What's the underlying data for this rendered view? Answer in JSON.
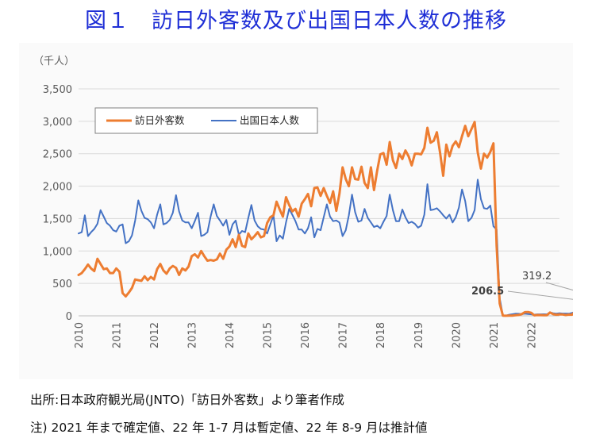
{
  "title": "図１　訪日外客数及び出国日本人数の推移",
  "notes": {
    "source": "出所:日本政府観光局(JNTO)「訪日外客数」より筆者作成",
    "note": "注) 2021 年まで確定値、22 年 1-7 月は暫定値、22 年 8-9 月は推計値"
  },
  "colors": {
    "inbound": "#ed7d31",
    "outbound": "#4472c4",
    "grid": "#d9d9d9",
    "axis": "#bfbfbf"
  },
  "chart_data": {
    "type": "line",
    "unit_label": "（千人）",
    "x_start": "2010-01",
    "x_ticks": [
      "2010",
      "2011",
      "2012",
      "2013",
      "2014",
      "2015",
      "2016",
      "2017",
      "2018",
      "2019",
      "2020",
      "2021",
      "2022"
    ],
    "ylim": [
      0,
      3500
    ],
    "y_ticks": [
      0,
      500,
      1000,
      1500,
      2000,
      2500,
      3000,
      3500
    ],
    "y_tick_labels": [
      "0",
      "500",
      "1,000",
      "1,500",
      "2,000",
      "2,500",
      "3,000",
      "3,500"
    ],
    "grid": true,
    "legend_position": "top-left",
    "series": [
      {
        "name": "訪日外客数",
        "values": [
          630,
          660,
          720,
          790,
          730,
          690,
          880,
          800,
          720,
          730,
          660,
          660,
          730,
          680,
          350,
          300,
          360,
          430,
          560,
          550,
          540,
          610,
          550,
          600,
          560,
          720,
          800,
          700,
          650,
          730,
          770,
          740,
          630,
          730,
          700,
          760,
          920,
          950,
          900,
          1000,
          920,
          850,
          860,
          850,
          870,
          960,
          880,
          1020,
          1070,
          1180,
          1060,
          1250,
          1080,
          1060,
          1270,
          1180,
          1230,
          1290,
          1210,
          1230,
          1430,
          1520,
          1550,
          1760,
          1640,
          1530,
          1830,
          1710,
          1610,
          1650,
          1530,
          1730,
          1800,
          1880,
          1690,
          1970,
          1980,
          1850,
          1970,
          1850,
          1740,
          1920,
          1620,
          1880,
          2290,
          2110,
          2000,
          2290,
          2110,
          2100,
          2300,
          2050,
          1970,
          2290,
          1940,
          2240,
          2490,
          2510,
          2330,
          2680,
          2400,
          2280,
          2500,
          2420,
          2550,
          2460,
          2320,
          2500,
          2500,
          2490,
          2590,
          2900,
          2670,
          2700,
          2830,
          2520,
          2160,
          2640,
          2460,
          2620,
          2690,
          2600,
          2770,
          2930,
          2770,
          2880,
          2990,
          2520,
          2270,
          2500,
          2440,
          2530,
          2660,
          1080,
          190,
          2.9,
          1.7,
          2.6,
          3.8,
          8.7,
          13.7,
          27.4,
          56.7,
          58.7,
          46.5,
          7.4,
          12.3,
          10.9,
          10.0,
          9.3,
          51.1,
          25.9,
          17.7,
          22.1,
          20.7,
          12.1,
          17.8,
          16.7,
          66.1,
          139.5,
          147.0,
          120.4,
          144.5,
          176.0,
          206.5
        ]
      },
      {
        "name": "出国日本人数",
        "values": [
          1270,
          1290,
          1550,
          1230,
          1290,
          1340,
          1420,
          1630,
          1530,
          1430,
          1390,
          1320,
          1300,
          1390,
          1410,
          1120,
          1150,
          1240,
          1470,
          1780,
          1620,
          1510,
          1490,
          1440,
          1350,
          1560,
          1720,
          1410,
          1430,
          1480,
          1590,
          1860,
          1610,
          1470,
          1440,
          1440,
          1350,
          1460,
          1590,
          1230,
          1250,
          1290,
          1530,
          1720,
          1540,
          1470,
          1390,
          1480,
          1250,
          1410,
          1470,
          1250,
          1310,
          1290,
          1510,
          1710,
          1470,
          1380,
          1340,
          1330,
          1270,
          1410,
          1550,
          1150,
          1240,
          1190,
          1440,
          1650,
          1560,
          1460,
          1330,
          1330,
          1270,
          1350,
          1520,
          1210,
          1340,
          1320,
          1520,
          1720,
          1530,
          1460,
          1470,
          1440,
          1230,
          1320,
          1550,
          1870,
          1600,
          1450,
          1470,
          1650,
          1510,
          1440,
          1370,
          1390,
          1350,
          1450,
          1540,
          1870,
          1630,
          1460,
          1460,
          1640,
          1520,
          1430,
          1450,
          1420,
          1360,
          1390,
          1560,
          2030,
          1630,
          1640,
          1660,
          1610,
          1550,
          1500,
          1560,
          1440,
          1520,
          1670,
          1950,
          1770,
          1460,
          1510,
          1630,
          2100,
          1800,
          1660,
          1650,
          1700,
          1380,
          1330,
          270,
          3.9,
          3.6,
          16.6,
          24.7,
          33.6,
          32.3,
          25.7,
          32.5,
          26.8,
          23.8,
          18.0,
          23.5,
          22.9,
          24.0,
          23.6,
          52.1,
          40.1,
          33.5,
          40.8,
          34.9,
          35.2,
          32.8,
          44.1,
          62.0,
          115.6,
          166.3,
          136.8,
          238.1,
          384.6,
          319.2
        ]
      }
    ],
    "annotations": [
      {
        "series": "訪日外客数",
        "label": "206.5"
      },
      {
        "series": "出国日本人数",
        "label": "319.2"
      }
    ]
  }
}
